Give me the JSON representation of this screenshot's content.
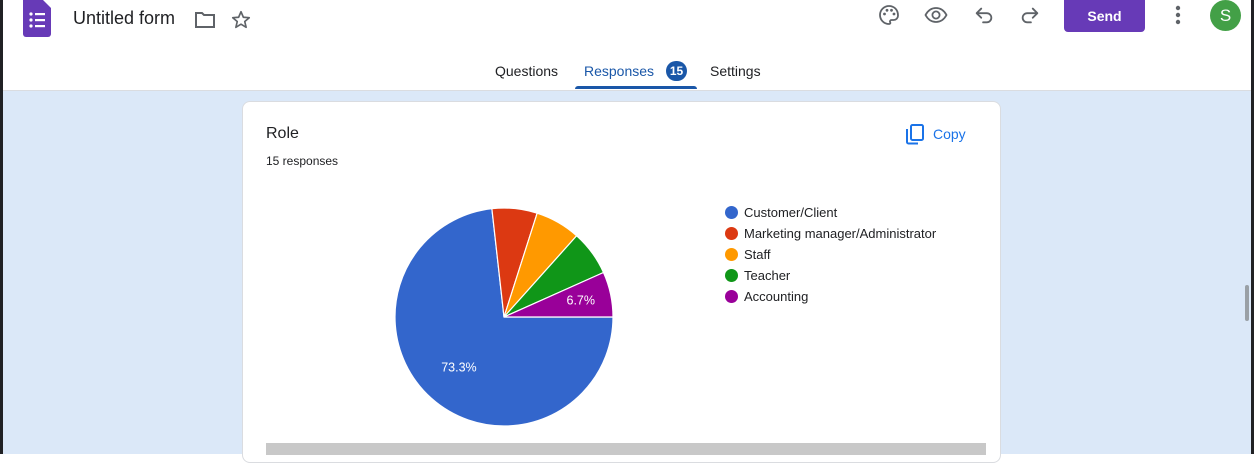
{
  "header": {
    "form_title": "Untitled form",
    "send_label": "Send",
    "avatar_initial": "S"
  },
  "tabs": [
    {
      "label": "Questions"
    },
    {
      "label": "Responses",
      "badge": "15"
    },
    {
      "label": "Settings"
    }
  ],
  "card": {
    "question_title": "Role",
    "responses_text": "15 responses",
    "copy_label": "Copy"
  },
  "chart_data": {
    "type": "pie",
    "categories": [
      "Customer/Client",
      "Marketing manager/Administrator",
      "Staff",
      "Teacher",
      "Accounting"
    ],
    "values": [
      73.3,
      6.7,
      6.7,
      6.7,
      6.7
    ],
    "labels_shown": [
      "73.3%",
      "",
      "",
      "",
      "6.7%"
    ],
    "colors": [
      "#3366cc",
      "#dc3912",
      "#ff9900",
      "#109618",
      "#990099"
    ],
    "legend_position": "right"
  },
  "icons": {
    "palette": "palette-icon",
    "preview": "eye-icon",
    "undo": "undo-icon",
    "redo": "redo-icon",
    "more": "more-vert-icon"
  }
}
